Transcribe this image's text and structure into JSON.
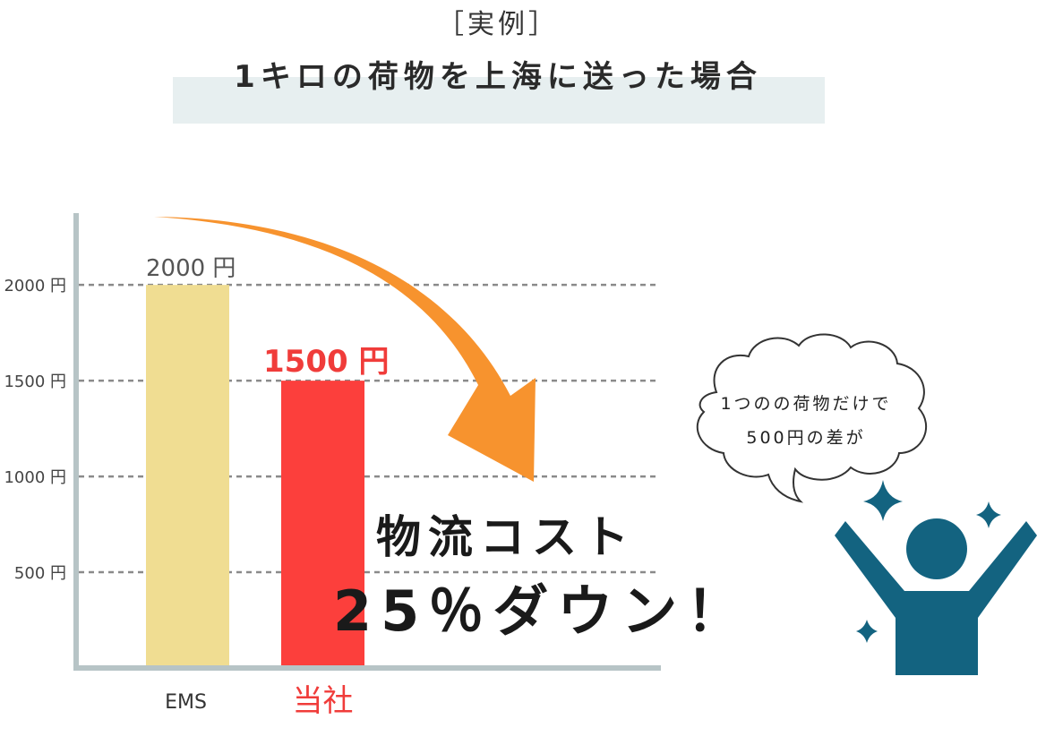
{
  "header": {
    "label": "［実例］",
    "title": "1キロの荷物を上海に送った場合"
  },
  "chart_data": {
    "type": "bar",
    "categories": [
      "EMS",
      "当社"
    ],
    "values": [
      2000,
      1500
    ],
    "value_labels": [
      "2000 円",
      "1500 円"
    ],
    "ylim": [
      0,
      2300
    ],
    "yticks": [
      500,
      1000,
      1500,
      2000
    ],
    "ytick_labels": [
      "500 円",
      "1000 円",
      "1500 円",
      "2000 円"
    ],
    "grid": "horizontal dashed",
    "colors": [
      "#f0dd92",
      "#fc3f3c"
    ]
  },
  "headline": {
    "line1": "物流コスト",
    "line2": "25％ダウン！"
  },
  "bubble": {
    "line1": "1つのの荷物だけで",
    "line2": "500円の差が"
  },
  "colors": {
    "arrow": "#f7932e",
    "person": "#136380",
    "axis": "#b7c4c6",
    "title_band": "#e7eff0",
    "accent_red": "#f03c3a"
  },
  "icons": [
    "down-curve-arrow",
    "sparkle",
    "person-cheering",
    "speech-bubble"
  ]
}
